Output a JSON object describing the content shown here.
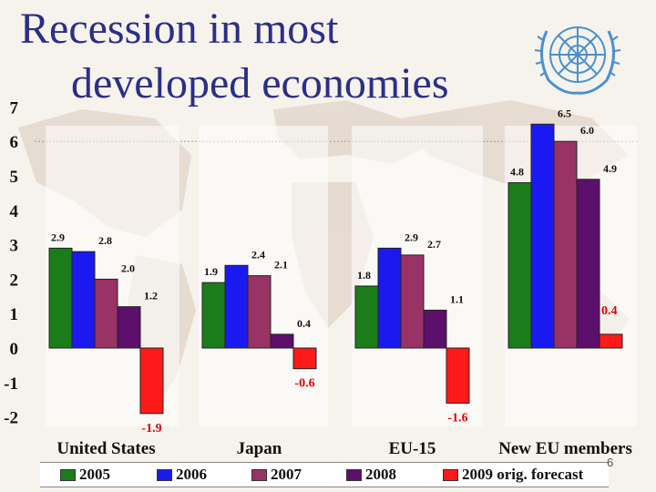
{
  "title_lines": [
    "Recession in most",
    "developed economies"
  ],
  "slide_number": "6",
  "colors": {
    "title": "#2b2f86",
    "map": "#e3d8cd",
    "logo": "#4a90d0"
  },
  "logo_icon": "un-emblem-icon",
  "chart_data": {
    "type": "bar",
    "title": "",
    "xlabel": "",
    "ylabel": "",
    "ylim": [
      -2,
      7
    ],
    "yticks": [
      "-2",
      "-1",
      "0",
      "1",
      "2",
      "3",
      "4",
      "5",
      "6",
      "7"
    ],
    "grid": "dotted line at 6",
    "legend": "bottom",
    "categories": [
      "United States",
      "Japan",
      "EU-15",
      "New EU members"
    ],
    "series": [
      {
        "name": "2005",
        "color": "#1a7d1a",
        "values": [
          2.9,
          1.9,
          1.8,
          4.8
        ],
        "labels": [
          "2.9",
          "1.9",
          "1.8",
          "4.8"
        ]
      },
      {
        "name": "2006",
        "color": "#1a1af0",
        "values": [
          2.8,
          2.4,
          2.9,
          6.5
        ],
        "labels": [
          "2.8",
          "2.4",
          "2.9",
          "6.5"
        ]
      },
      {
        "name": "2007",
        "color": "#993366",
        "values": [
          2.0,
          2.1,
          2.7,
          6.0
        ],
        "labels": [
          "2.0",
          "2.1",
          "2.7",
          "6.0"
        ]
      },
      {
        "name": "2008",
        "color": "#5c0f6b",
        "values": [
          1.2,
          0.4,
          1.1,
          4.9
        ],
        "labels": [
          "1.2",
          "0.4",
          "1.1",
          "4.9"
        ]
      },
      {
        "name": "2009 orig. forecast",
        "color": "#ff1a1a",
        "values": [
          -1.9,
          -0.6,
          -1.6,
          0.4
        ],
        "labels": [
          "-1.9",
          "-0.6",
          "-1.6",
          "0.4"
        ]
      }
    ]
  }
}
